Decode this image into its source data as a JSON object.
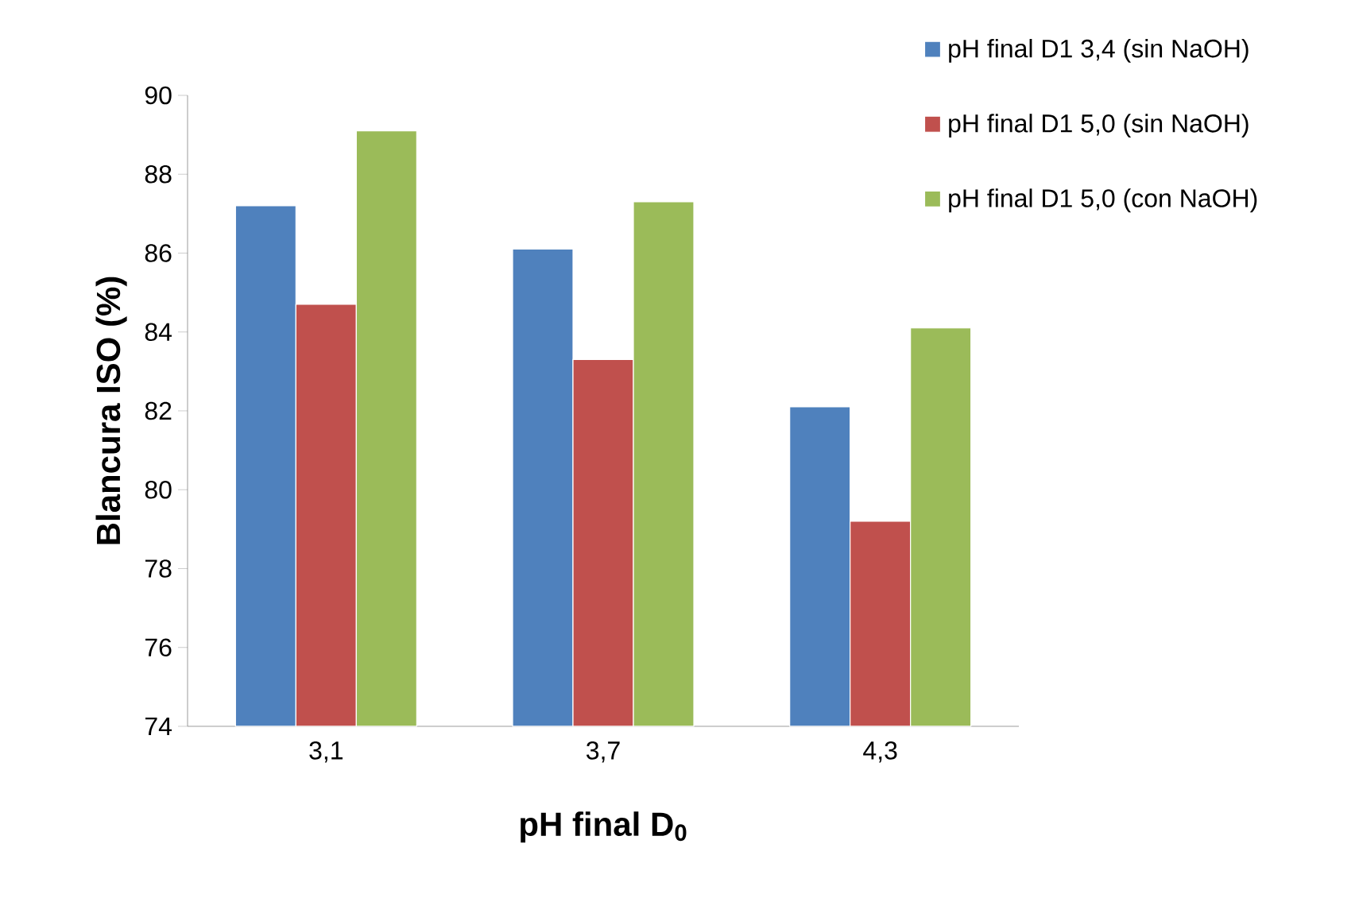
{
  "chart_data": {
    "type": "bar",
    "xlabel": "pH final D$_{0}$",
    "ylabel": "Blancura ISO (%)",
    "categories": [
      "3,1",
      "3,7",
      "4,3"
    ],
    "series": [
      {
        "name": "pH final D1 3,4 (sin NaOH)",
        "color": "#4f81bd",
        "values": [
          87.2,
          86.1,
          82.1
        ]
      },
      {
        "name": "pH final D1 5,0 (sin NaOH)",
        "color": "#c0504d",
        "values": [
          84.7,
          83.3,
          79.2
        ]
      },
      {
        "name": "pH final D1 5,0 (con NaOH)",
        "color": "#9bbb59",
        "values": [
          89.1,
          87.3,
          84.1
        ]
      }
    ],
    "ylim": [
      74,
      90
    ],
    "yticks": [
      74,
      76,
      78,
      80,
      82,
      84,
      86,
      88,
      90
    ],
    "grid": false,
    "legend": "top right"
  }
}
